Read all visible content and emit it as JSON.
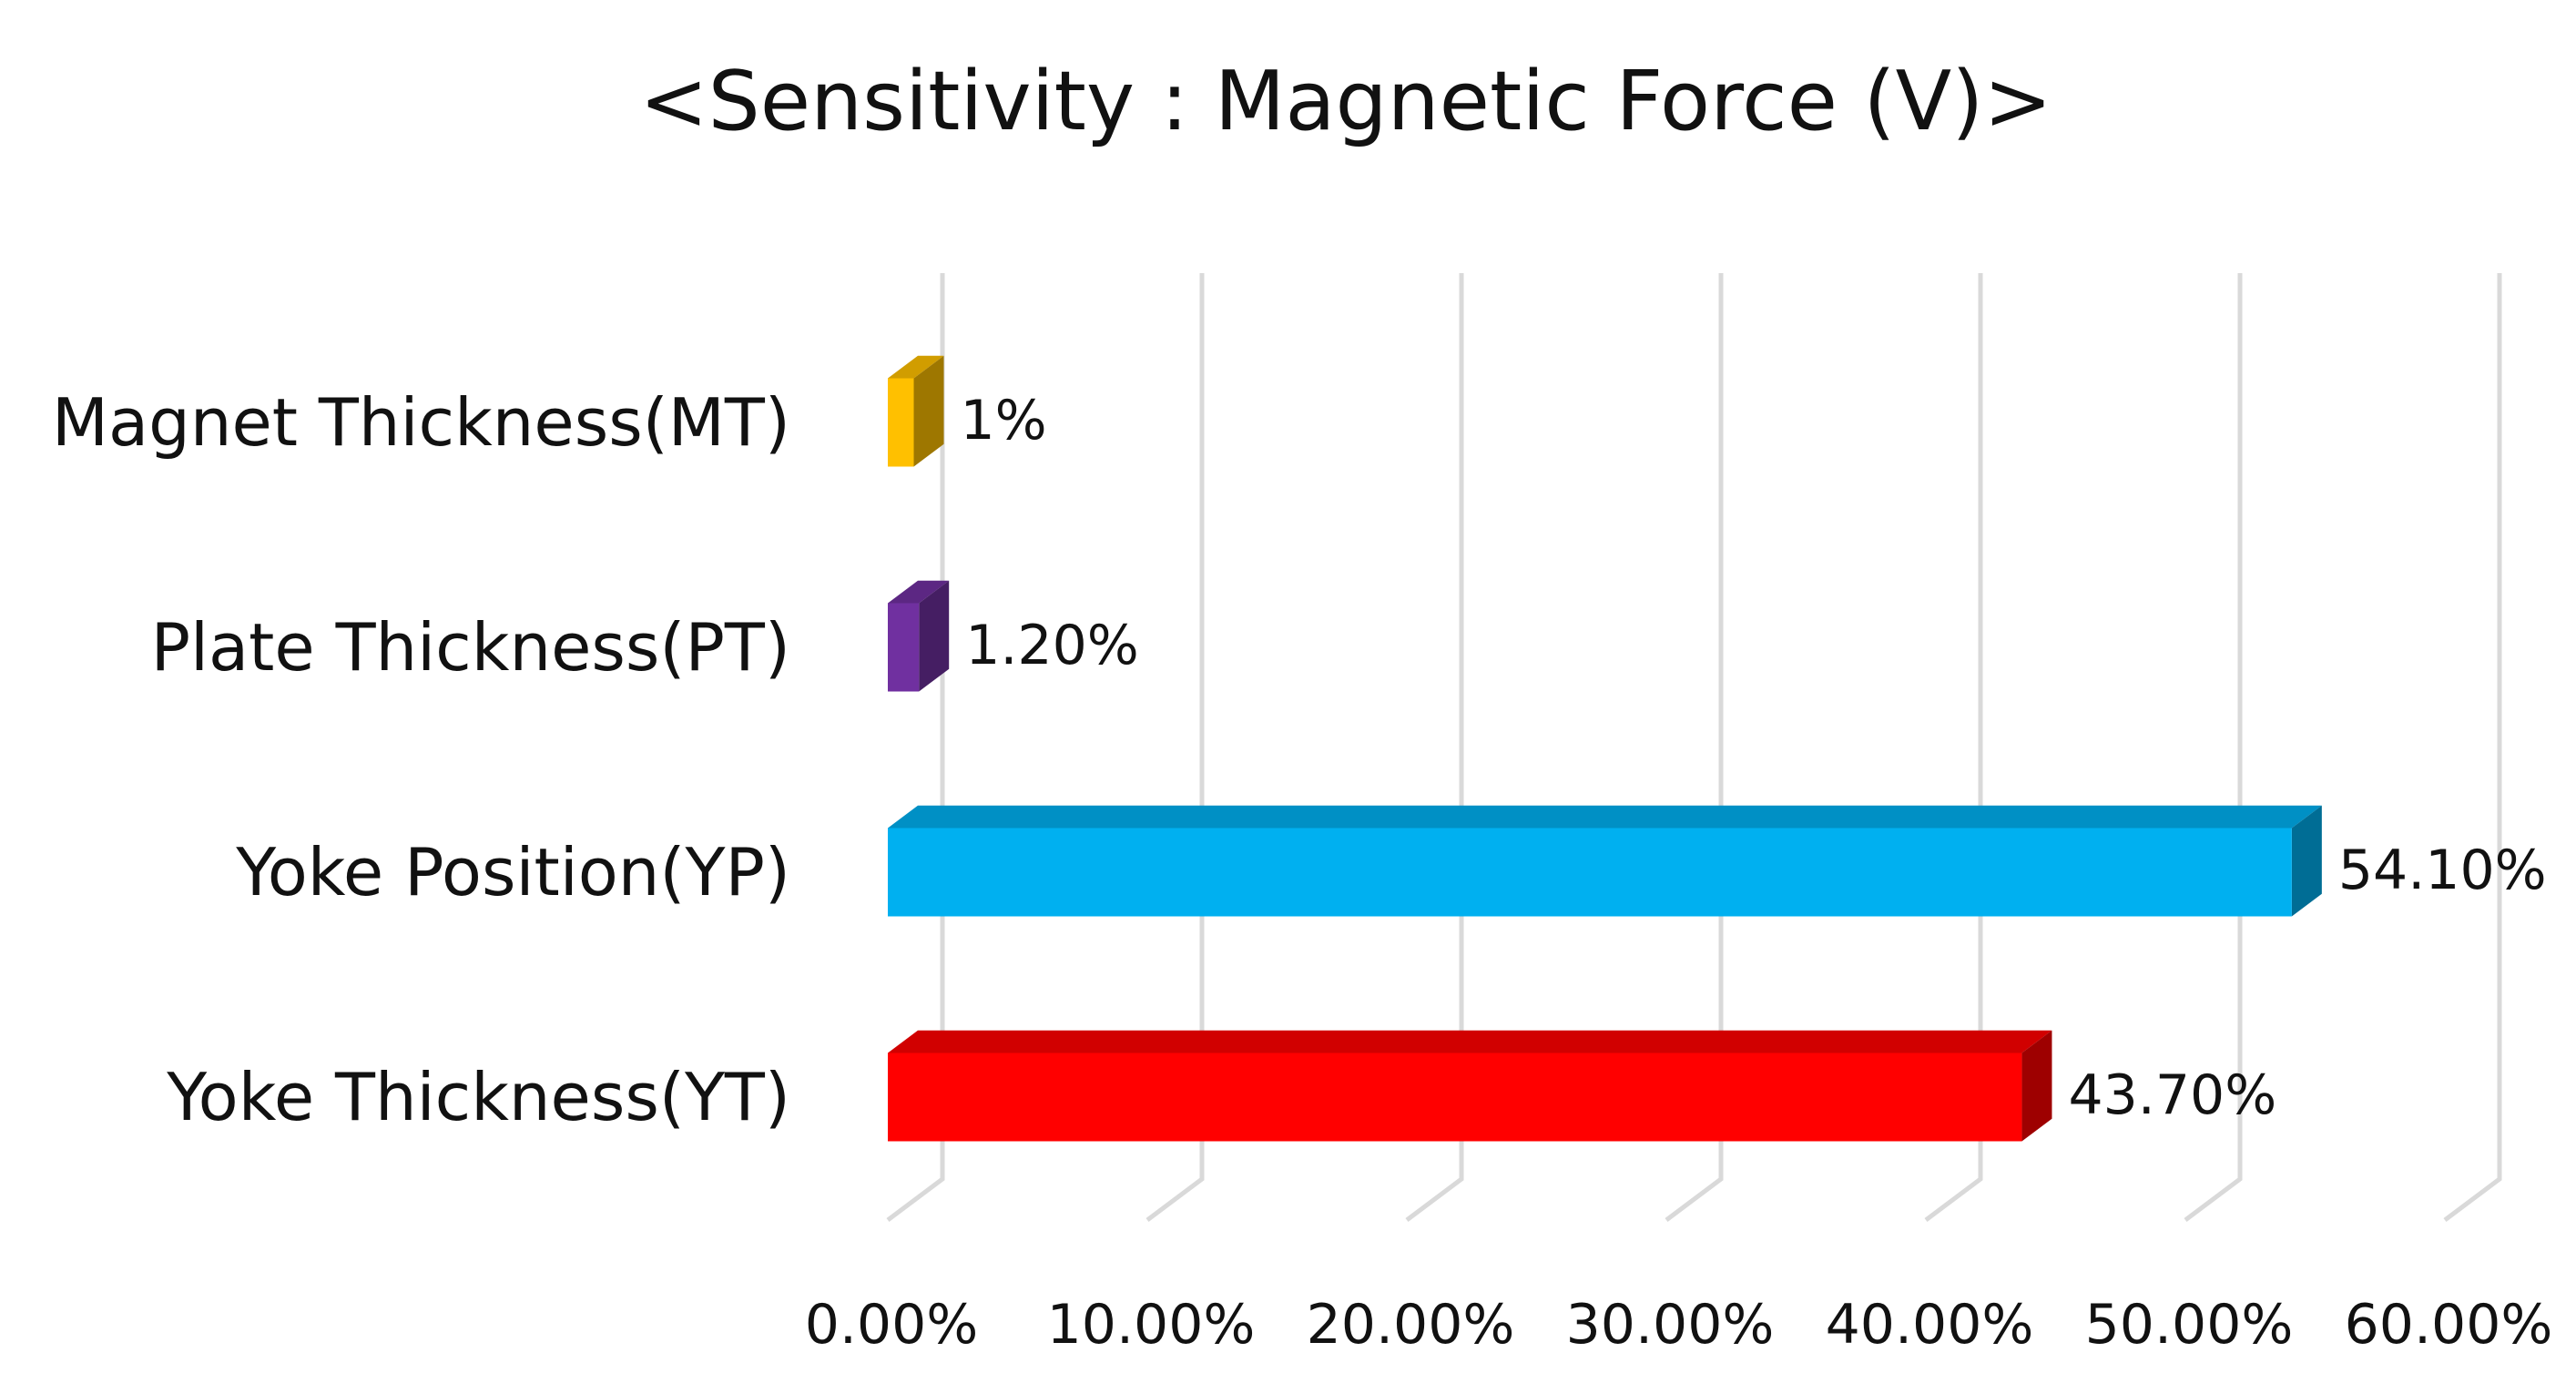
{
  "chart_data": {
    "type": "bar",
    "orientation": "horizontal",
    "style": "3d",
    "title": "<Sensitivity : Magnetic Force (V)>",
    "xlabel": "",
    "ylabel": "",
    "xlim": [
      0,
      60
    ],
    "grid": true,
    "legend": "none",
    "categories": [
      "Magnet Thickness(MT)",
      "Plate Thickness(PT)",
      "Yoke Position(YP)",
      "Yoke Thickness(YT)"
    ],
    "values": [
      1.0,
      1.2,
      54.1,
      43.7
    ],
    "data_labels": [
      "1%",
      "1.20%",
      "54.10%",
      "43.70%"
    ],
    "tick_labels": [
      "0.00%",
      "10.00%",
      "20.00%",
      "30.00%",
      "40.00%",
      "50.00%",
      "60.00%"
    ],
    "colors": [
      "#FFC000",
      "#7030A0",
      "#00B0F0",
      "#FF0000"
    ]
  }
}
